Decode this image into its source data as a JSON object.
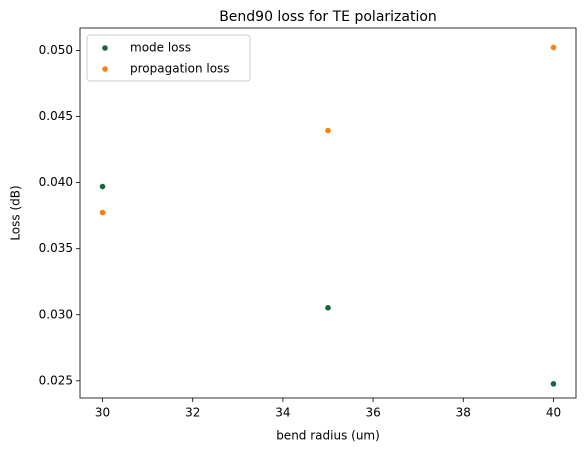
{
  "chart_data": {
    "type": "scatter",
    "title": "Bend90 loss for TE polarization",
    "x_label": "bend radius (um)",
    "y_label": "Loss (dB)",
    "series": [
      {
        "name": "mode loss",
        "color": "#17663a",
        "x": [
          30,
          35,
          40
        ],
        "values": [
          0.0397,
          0.03053,
          0.02477
        ]
      },
      {
        "name": "propagation loss",
        "color": "#ff7f0e",
        "x": [
          30,
          35,
          40
        ],
        "values": [
          0.03773,
          0.04394,
          0.05023
        ]
      }
    ],
    "xlim": [
      29.5,
      40.5
    ],
    "xticks": [
      30,
      32,
      34,
      36,
      38,
      40
    ],
    "ylim": [
      0.0237,
      0.0517
    ],
    "yticks": [
      {
        "value": 0.025,
        "label": "0.025"
      },
      {
        "value": 0.03,
        "label": "0.030"
      },
      {
        "value": 0.035,
        "label": "0.035"
      },
      {
        "value": 0.04,
        "label": "0.040"
      },
      {
        "value": 0.045,
        "label": "0.045"
      },
      {
        "value": 0.05,
        "label": "0.050"
      }
    ],
    "legend": "upper left",
    "grid": false
  }
}
